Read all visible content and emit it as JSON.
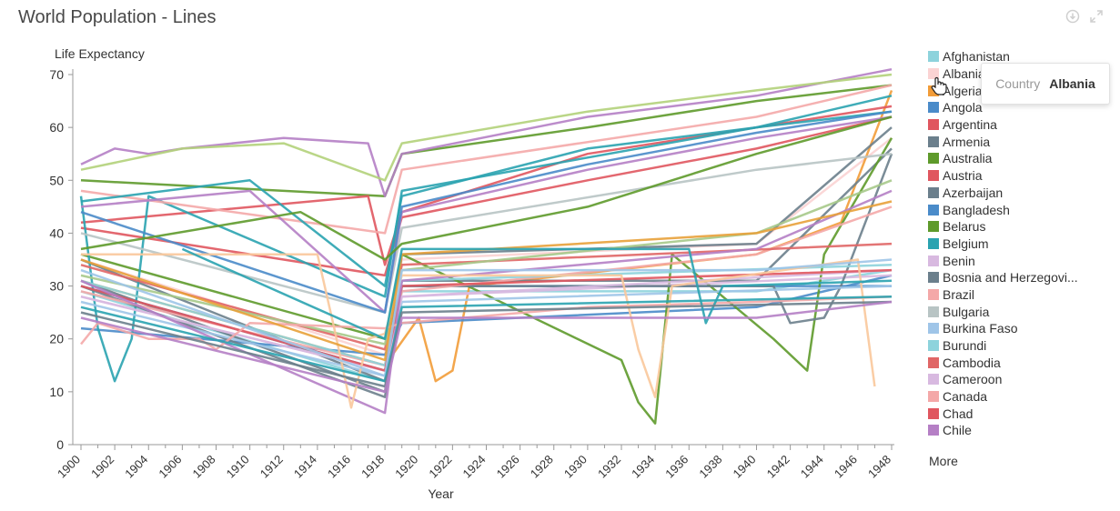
{
  "title": "World Population - Lines",
  "toolbar": {
    "download_icon": "download-icon",
    "expand_icon": "expand-icon"
  },
  "tooltip": {
    "key": "Country",
    "value": "Albania"
  },
  "more_label": "More",
  "chart_data": {
    "type": "line",
    "title": "World Population - Lines",
    "xlabel": "Year",
    "ylabel": "Life Expectancy",
    "xlim": [
      1900,
      1948
    ],
    "ylim": [
      0,
      70
    ],
    "x_ticks": [
      "1900",
      "1902",
      "1904",
      "1906",
      "1908",
      "1910",
      "1912",
      "1914",
      "1916",
      "1918",
      "1920",
      "1922",
      "1924",
      "1926",
      "1928",
      "1930",
      "1932",
      "1934",
      "1936",
      "1938",
      "1940",
      "1942",
      "1944",
      "1946",
      "1948"
    ],
    "y_ticks": [
      "0",
      "10",
      "20",
      "30",
      "40",
      "50",
      "60",
      "70"
    ],
    "grid": false,
    "legend_position": "right",
    "series": [
      {
        "name": "Afghanistan",
        "color": "#8dd3dc",
        "values": [
          [
            1900,
            29
          ],
          [
            1918,
            12
          ],
          [
            1919,
            29
          ],
          [
            1940,
            29
          ],
          [
            1948,
            33
          ]
        ]
      },
      {
        "name": "Albania",
        "color": "#fbd3d3",
        "values": [
          [
            1900,
            35
          ],
          [
            1918,
            17
          ],
          [
            1919,
            35
          ],
          [
            1940,
            38
          ],
          [
            1948,
            58
          ]
        ]
      },
      {
        "name": "Algeria",
        "color": "#f29c38",
        "values": [
          [
            1900,
            31
          ],
          [
            1918,
            15
          ],
          [
            1920,
            24
          ],
          [
            1921,
            12
          ],
          [
            1922,
            14
          ],
          [
            1923,
            30
          ],
          [
            1940,
            36
          ],
          [
            1945,
            42
          ],
          [
            1948,
            67
          ]
        ]
      },
      {
        "name": "Angola",
        "color": "#4a8bc9",
        "values": [
          [
            1900,
            30
          ],
          [
            1918,
            14
          ],
          [
            1919,
            30
          ],
          [
            1948,
            30
          ]
        ]
      },
      {
        "name": "Argentina",
        "color": "#e0565f",
        "values": [
          [
            1900,
            41
          ],
          [
            1918,
            32
          ],
          [
            1919,
            43
          ],
          [
            1930,
            50
          ],
          [
            1940,
            56
          ],
          [
            1948,
            62
          ]
        ]
      },
      {
        "name": "Armenia",
        "color": "#6b7f8c",
        "values": [
          [
            1900,
            35
          ],
          [
            1918,
            12
          ],
          [
            1919,
            36
          ],
          [
            1940,
            38
          ],
          [
            1948,
            60
          ]
        ]
      },
      {
        "name": "Australia",
        "color": "#5e9a2b",
        "values": [
          [
            1900,
            50
          ],
          [
            1918,
            47
          ],
          [
            1919,
            55
          ],
          [
            1930,
            60
          ],
          [
            1940,
            65
          ],
          [
            1948,
            68
          ]
        ]
      },
      {
        "name": "Austria",
        "color": "#e0565f",
        "values": [
          [
            1900,
            42
          ],
          [
            1917,
            47
          ],
          [
            1918,
            34
          ],
          [
            1919,
            44
          ],
          [
            1930,
            55
          ],
          [
            1940,
            60
          ],
          [
            1948,
            64
          ]
        ]
      },
      {
        "name": "Azerbaijan",
        "color": "#6b7f8c",
        "values": [
          [
            1900,
            31
          ],
          [
            1918,
            10
          ],
          [
            1919,
            31
          ],
          [
            1940,
            31
          ],
          [
            1948,
            56
          ]
        ]
      },
      {
        "name": "Bangladesh",
        "color": "#4a8bc9",
        "values": [
          [
            1900,
            22
          ],
          [
            1918,
            17
          ],
          [
            1919,
            23
          ],
          [
            1940,
            26
          ],
          [
            1948,
            32
          ]
        ]
      },
      {
        "name": "Belarus",
        "color": "#5e9a2b",
        "values": [
          [
            1900,
            36
          ],
          [
            1918,
            20
          ],
          [
            1919,
            36
          ],
          [
            1932,
            16
          ],
          [
            1933,
            8
          ],
          [
            1934,
            4
          ],
          [
            1935,
            36
          ],
          [
            1941,
            20
          ],
          [
            1943,
            14
          ],
          [
            1944,
            36
          ],
          [
            1948,
            58
          ]
        ]
      },
      {
        "name": "Belgium",
        "color": "#2aa3b0",
        "values": [
          [
            1900,
            47
          ],
          [
            1901,
            22
          ],
          [
            1902,
            12
          ],
          [
            1903,
            20
          ],
          [
            1904,
            47
          ],
          [
            1918,
            28
          ],
          [
            1919,
            48
          ],
          [
            1940,
            60
          ],
          [
            1948,
            66
          ]
        ]
      },
      {
        "name": "Benin",
        "color": "#d8b9e0",
        "values": [
          [
            1900,
            28
          ],
          [
            1918,
            14
          ],
          [
            1919,
            28
          ],
          [
            1948,
            32
          ]
        ]
      },
      {
        "name": "Bosnia and Herzegovi...",
        "color": "#6b7f8c",
        "values": [
          [
            1900,
            30
          ],
          [
            1918,
            9
          ],
          [
            1919,
            30
          ],
          [
            1941,
            30
          ],
          [
            1942,
            23
          ],
          [
            1944,
            24
          ],
          [
            1945,
            30
          ],
          [
            1948,
            55
          ]
        ]
      },
      {
        "name": "Brazil",
        "color": "#f4a8a8",
        "values": [
          [
            1900,
            29
          ],
          [
            1918,
            15
          ],
          [
            1919,
            29
          ],
          [
            1940,
            36
          ],
          [
            1948,
            45
          ]
        ]
      },
      {
        "name": "Bulgaria",
        "color": "#b8c4c4",
        "values": [
          [
            1900,
            40
          ],
          [
            1918,
            25
          ],
          [
            1919,
            41
          ],
          [
            1940,
            52
          ],
          [
            1948,
            55
          ]
        ]
      },
      {
        "name": "Burkina Faso",
        "color": "#9fc5e8",
        "values": [
          [
            1900,
            27
          ],
          [
            1918,
            13
          ],
          [
            1919,
            27
          ],
          [
            1948,
            30
          ]
        ]
      },
      {
        "name": "Burundi",
        "color": "#8dd3dc",
        "values": [
          [
            1900,
            31
          ],
          [
            1918,
            15
          ],
          [
            1919,
            31
          ],
          [
            1948,
            34
          ]
        ]
      },
      {
        "name": "Cambodia",
        "color": "#e06666",
        "values": [
          [
            1900,
            34
          ],
          [
            1918,
            18
          ],
          [
            1919,
            34
          ],
          [
            1948,
            38
          ]
        ]
      },
      {
        "name": "Cameroon",
        "color": "#d8b9e0",
        "values": [
          [
            1900,
            28
          ],
          [
            1918,
            14
          ],
          [
            1919,
            28
          ],
          [
            1948,
            33
          ]
        ]
      },
      {
        "name": "Canada",
        "color": "#f4a8a8",
        "values": [
          [
            1900,
            48
          ],
          [
            1918,
            40
          ],
          [
            1919,
            52
          ],
          [
            1940,
            62
          ],
          [
            1948,
            68
          ]
        ]
      },
      {
        "name": "Chad",
        "color": "#e0565f",
        "values": [
          [
            1900,
            30
          ],
          [
            1918,
            14
          ],
          [
            1919,
            30
          ],
          [
            1948,
            33
          ]
        ]
      },
      {
        "name": "Chile",
        "color": "#b57fc5",
        "values": [
          [
            1900,
            31
          ],
          [
            1918,
            6
          ],
          [
            1919,
            31
          ],
          [
            1940,
            37
          ],
          [
            1948,
            48
          ]
        ]
      },
      {
        "values": [
          [
            1900,
            53
          ],
          [
            1902,
            56
          ],
          [
            1904,
            55
          ],
          [
            1906,
            56
          ],
          [
            1912,
            58
          ],
          [
            1917,
            57
          ],
          [
            1918,
            47
          ],
          [
            1919,
            55
          ],
          [
            1930,
            62
          ],
          [
            1940,
            66
          ],
          [
            1948,
            71
          ]
        ],
        "color": "#b57fc5"
      },
      {
        "values": [
          [
            1900,
            52
          ],
          [
            1906,
            56
          ],
          [
            1912,
            57
          ],
          [
            1918,
            50
          ],
          [
            1919,
            57
          ],
          [
            1930,
            63
          ],
          [
            1940,
            67
          ],
          [
            1948,
            70
          ]
        ],
        "color": "#b3d27a"
      },
      {
        "values": [
          [
            1900,
            46
          ],
          [
            1910,
            50
          ],
          [
            1918,
            30
          ],
          [
            1919,
            47
          ],
          [
            1930,
            56
          ],
          [
            1940,
            60
          ],
          [
            1948,
            63
          ]
        ],
        "color": "#2aa3b0"
      },
      {
        "values": [
          [
            1900,
            45
          ],
          [
            1910,
            48
          ],
          [
            1918,
            25
          ],
          [
            1919,
            44
          ],
          [
            1930,
            52
          ],
          [
            1940,
            58
          ],
          [
            1948,
            62
          ]
        ],
        "color": "#b57fc5"
      },
      {
        "values": [
          [
            1900,
            44
          ],
          [
            1918,
            25
          ],
          [
            1919,
            45
          ],
          [
            1930,
            53
          ],
          [
            1940,
            59
          ],
          [
            1948,
            63
          ]
        ],
        "color": "#4a8bc9"
      },
      {
        "values": [
          [
            1900,
            37
          ],
          [
            1913,
            44
          ],
          [
            1918,
            35
          ],
          [
            1919,
            38
          ],
          [
            1930,
            45
          ],
          [
            1940,
            55
          ],
          [
            1948,
            62
          ]
        ],
        "color": "#5e9a2b"
      },
      {
        "values": [
          [
            1900,
            32
          ],
          [
            1918,
            19
          ],
          [
            1919,
            33
          ],
          [
            1940,
            40
          ],
          [
            1948,
            50
          ]
        ],
        "color": "#a6c98a"
      },
      {
        "values": [
          [
            1900,
            19
          ],
          [
            1901,
            23
          ],
          [
            1904,
            20
          ],
          [
            1907,
            20
          ],
          [
            1908,
            18
          ],
          [
            1910,
            23
          ],
          [
            1918,
            22
          ],
          [
            1919,
            23
          ],
          [
            1930,
            26
          ],
          [
            1940,
            27
          ],
          [
            1948,
            28
          ]
        ],
        "color": "#f4a8a8"
      },
      {
        "values": [
          [
            1900,
            36
          ],
          [
            1914,
            36
          ],
          [
            1915,
            22
          ],
          [
            1916,
            7
          ],
          [
            1917,
            20
          ],
          [
            1918,
            21
          ],
          [
            1919,
            32
          ],
          [
            1932,
            32
          ],
          [
            1933,
            18
          ],
          [
            1934,
            9
          ],
          [
            1935,
            30
          ],
          [
            1946,
            35
          ],
          [
            1947,
            11
          ]
        ],
        "color": "#f9c89b"
      },
      {
        "values": [
          [
            1900,
            35
          ],
          [
            1918,
            16
          ],
          [
            1919,
            36
          ],
          [
            1940,
            40
          ],
          [
            1948,
            46
          ]
        ],
        "color": "#e8a13a"
      },
      {
        "values": [
          [
            1900,
            33
          ],
          [
            1918,
            13
          ],
          [
            1919,
            33
          ],
          [
            1940,
            33
          ],
          [
            1948,
            35
          ]
        ],
        "color": "#9fc5e8"
      },
      {
        "values": [
          [
            1900,
            26
          ],
          [
            1918,
            12
          ],
          [
            1919,
            26
          ],
          [
            1948,
            28
          ]
        ],
        "color": "#2aa3b0"
      },
      {
        "values": [
          [
            1906,
            37
          ],
          [
            1918,
            20
          ],
          [
            1919,
            37
          ],
          [
            1936,
            37
          ],
          [
            1937,
            23
          ],
          [
            1938,
            30
          ],
          [
            1948,
            31
          ]
        ],
        "color": "#2aa3b0"
      },
      {
        "values": [
          [
            1900,
            25
          ],
          [
            1918,
            11
          ],
          [
            1919,
            25
          ],
          [
            1948,
            27
          ]
        ],
        "color": "#6b7f8c"
      },
      {
        "values": [
          [
            1900,
            24
          ],
          [
            1918,
            10
          ],
          [
            1919,
            24
          ],
          [
            1940,
            24
          ],
          [
            1948,
            27
          ]
        ],
        "color": "#b57fc5"
      }
    ]
  }
}
